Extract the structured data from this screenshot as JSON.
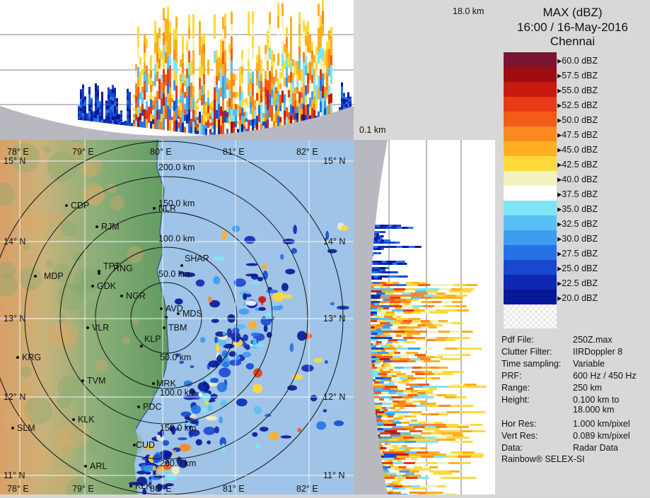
{
  "header": {
    "product": "MAX (dBZ)",
    "datetime": "16:00 / 16-May-2016",
    "station": "Chennai"
  },
  "height_labels": {
    "top": "18.0 km",
    "bottom": "0.1 km"
  },
  "legend": {
    "levels": [
      {
        "label": "60.0 dBZ",
        "color": "#7a1430"
      },
      {
        "label": "57.5 dBZ",
        "color": "#a00d10"
      },
      {
        "label": "55.0 dBZ",
        "color": "#c81a10"
      },
      {
        "label": "52.5 dBZ",
        "color": "#e83a14"
      },
      {
        "label": "50.0 dBZ",
        "color": "#f45a18"
      },
      {
        "label": "47.5 dBZ",
        "color": "#fb8a1e"
      },
      {
        "label": "45.0 dBZ",
        "color": "#ffb020"
      },
      {
        "label": "42.5 dBZ",
        "color": "#ffd93a"
      },
      {
        "label": "40.0 dBZ",
        "color": "#f3f0bf"
      },
      {
        "label": "37.5 dBZ",
        "color": "#ffffff"
      },
      {
        "label": "35.0 dBZ",
        "color": "#7fe4f4"
      },
      {
        "label": "32.5 dBZ",
        "color": "#58c0f4"
      },
      {
        "label": "30.0 dBZ",
        "color": "#3d9cf0"
      },
      {
        "label": "27.5 dBZ",
        "color": "#2572e6"
      },
      {
        "label": "25.0 dBZ",
        "color": "#1848d0"
      },
      {
        "label": "22.5 dBZ",
        "color": "#0e28b4"
      },
      {
        "label": "20.0 dBZ",
        "color": "#061896"
      }
    ]
  },
  "info": [
    {
      "key": "Pdf File:",
      "value": "250Z.max"
    },
    {
      "key": "Clutter Filter:",
      "value": "IIRDoppler 8"
    },
    {
      "key": "Time sampling:",
      "value": "Variable"
    },
    {
      "key": "PRF:",
      "value": "600 Hz / 450 Hz"
    },
    {
      "key": "Range:",
      "value": "250 km"
    },
    {
      "key": "Height:",
      "value": "0.100 km to\n18.000 km"
    },
    {
      "key": "Hor Res:",
      "value": "1.000 km/pixel"
    },
    {
      "key": "Vert Res:",
      "value": "0.089 km/pixel"
    },
    {
      "key": "Data:",
      "value": "Radar Data"
    }
  ],
  "footer": "Rainbow® SELEX-SI",
  "map": {
    "longitudes": [
      "78° E",
      "79° E",
      "80° E",
      "81° E",
      "82° E"
    ],
    "latitudes": [
      "15° N",
      "14° N",
      "13° N",
      "12° N",
      "11° N"
    ],
    "range_labels": [
      "200.0 km",
      "150.0 km",
      "100.0 km",
      "50.0 km",
      "50.0 km",
      "100.0 km",
      "150.0 km",
      "200.0 km"
    ],
    "cities": [
      {
        "name": "CDP"
      },
      {
        "name": "RJM"
      },
      {
        "name": "MDP"
      },
      {
        "name": "TPT"
      },
      {
        "name": "RNG"
      },
      {
        "name": "GDK"
      },
      {
        "name": "NGR"
      },
      {
        "name": "SHAR"
      },
      {
        "name": "AVD"
      },
      {
        "name": "MDS"
      },
      {
        "name": "TBM"
      },
      {
        "name": "VLR"
      },
      {
        "name": "KRG"
      },
      {
        "name": "KLP"
      },
      {
        "name": "TVM"
      },
      {
        "name": "MRK"
      },
      {
        "name": "PDC"
      },
      {
        "name": "KLK"
      },
      {
        "name": "SLM"
      },
      {
        "name": "CUD"
      },
      {
        "name": "ARL"
      },
      {
        "name": "NLR"
      },
      {
        "name": "KLK"
      }
    ]
  }
}
